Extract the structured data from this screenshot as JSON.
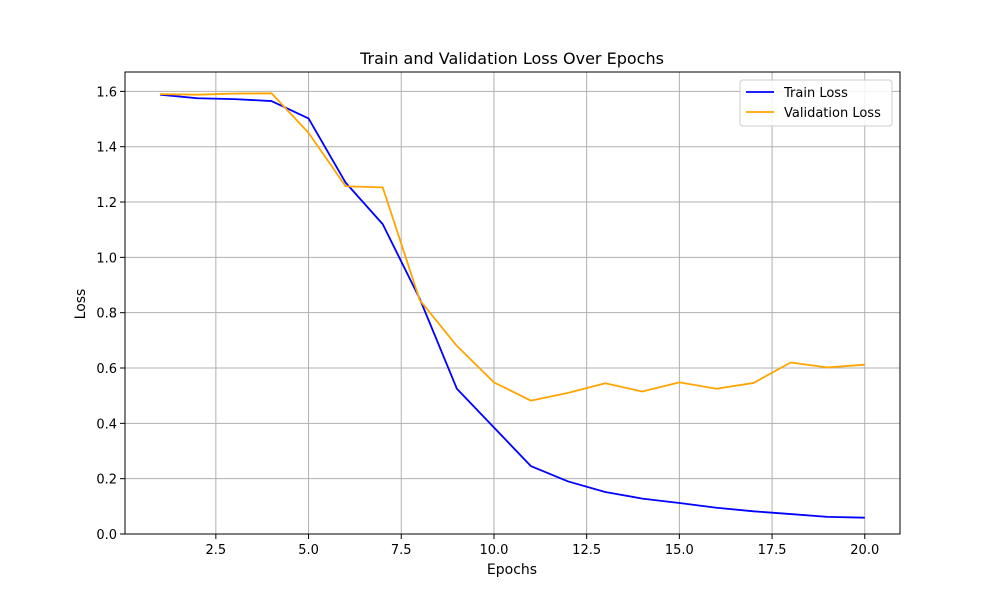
{
  "chart_data": {
    "type": "line",
    "title": "Train and Validation Loss Over Epochs",
    "xlabel": "Epochs",
    "ylabel": "Loss",
    "x": [
      1,
      2,
      3,
      4,
      5,
      6,
      7,
      8,
      9,
      10,
      11,
      12,
      13,
      14,
      15,
      16,
      17,
      18,
      19,
      20
    ],
    "xlim": [
      0.05,
      20.95
    ],
    "ylim": [
      0,
      1.67
    ],
    "x_ticks": [
      2.5,
      5.0,
      7.5,
      10.0,
      12.5,
      15.0,
      17.5,
      20.0
    ],
    "x_tick_labels": [
      "2.5",
      "5.0",
      "7.5",
      "10.0",
      "12.5",
      "15.0",
      "17.5",
      "20.0"
    ],
    "y_ticks": [
      0,
      0.2,
      0.4,
      0.6,
      0.8,
      1.0,
      1.2,
      1.4,
      1.6
    ],
    "y_tick_labels": [
      "0.0",
      "0.2",
      "0.4",
      "0.6",
      "0.8",
      "1.0",
      "1.2",
      "1.4",
      "1.6"
    ],
    "grid": true,
    "legend_position": "top-right",
    "series": [
      {
        "name": "Train Loss",
        "color": "#0000ff",
        "values": [
          1.588,
          1.575,
          1.572,
          1.565,
          1.502,
          1.27,
          1.12,
          0.85,
          0.525,
          0.385,
          0.245,
          0.19,
          0.152,
          0.128,
          0.112,
          0.095,
          0.082,
          0.072,
          0.062,
          0.059
        ]
      },
      {
        "name": "Validation Loss",
        "color": "#ffa500",
        "values": [
          1.59,
          1.588,
          1.592,
          1.593,
          1.45,
          1.257,
          1.253,
          0.845,
          0.68,
          0.548,
          0.482,
          0.51,
          0.545,
          0.515,
          0.548,
          0.525,
          0.546,
          0.62,
          0.602,
          0.612
        ]
      }
    ]
  }
}
